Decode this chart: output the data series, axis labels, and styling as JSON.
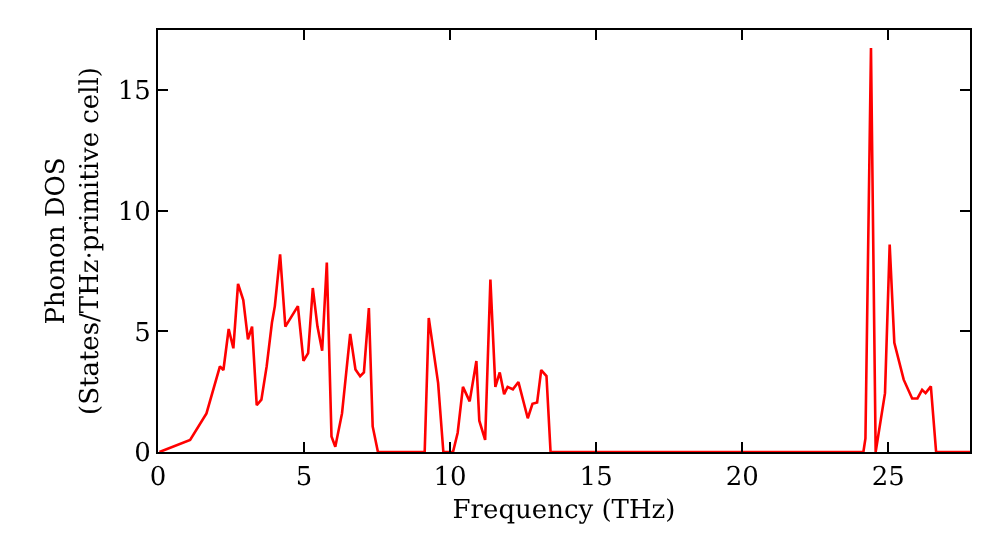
{
  "chart_data": {
    "type": "line",
    "xlabel": "Frequency (THz)",
    "ylabel": "Phonon DOS\n(States/THz·primitive cell)",
    "x": [
      0.05,
      1.1,
      1.66,
      2.12,
      2.24,
      2.42,
      2.58,
      2.74,
      2.92,
      3.08,
      3.22,
      3.38,
      3.54,
      3.72,
      3.9,
      4.0,
      4.18,
      4.36,
      4.79,
      4.98,
      5.14,
      5.3,
      5.46,
      5.62,
      5.78,
      5.94,
      6.07,
      6.3,
      6.58,
      6.76,
      6.92,
      7.05,
      7.22,
      7.35,
      7.53,
      9.13,
      9.27,
      9.59,
      9.77,
      10.1,
      10.26,
      10.44,
      10.67,
      10.9,
      11.0,
      11.2,
      11.38,
      11.55,
      11.7,
      11.85,
      11.97,
      12.15,
      12.34,
      12.66,
      12.82,
      12.98,
      13.12,
      13.3,
      13.44,
      24.15,
      24.22,
      24.41,
      24.57,
      24.89,
      25.05,
      25.21,
      25.53,
      25.82,
      26.0,
      26.16,
      26.28,
      26.46,
      26.64,
      27.8
    ],
    "series": [
      {
        "color": "#ff0000",
        "values": [
          0,
          0.5,
          1.6,
          3.55,
          3.4,
          5.1,
          4.3,
          6.97,
          6.3,
          4.67,
          5.2,
          1.94,
          2.17,
          3.55,
          5.36,
          6.05,
          8.2,
          5.2,
          6.05,
          3.78,
          4.1,
          6.8,
          5.2,
          4.2,
          7.86,
          0.64,
          0.22,
          1.6,
          4.9,
          3.42,
          3.14,
          3.3,
          5.97,
          1.06,
          0,
          0,
          5.56,
          2.86,
          0,
          0,
          0.8,
          2.7,
          2.1,
          3.77,
          1.3,
          0.5,
          7.15,
          2.7,
          3.3,
          2.4,
          2.7,
          2.6,
          2.9,
          1.4,
          2.0,
          2.05,
          3.4,
          3.15,
          0,
          0,
          0.56,
          16.75,
          0,
          2.44,
          8.6,
          4.53,
          3.0,
          2.22,
          2.22,
          2.58,
          2.44,
          2.72,
          0,
          0
        ]
      }
    ],
    "xlim": [
      0,
      27.8
    ],
    "ylim": [
      0,
      17.5
    ],
    "xticks": [
      0,
      5,
      10,
      15,
      20,
      25
    ],
    "yticks": [
      0,
      5,
      10,
      15
    ],
    "marker": "none",
    "line_style": "solid"
  }
}
